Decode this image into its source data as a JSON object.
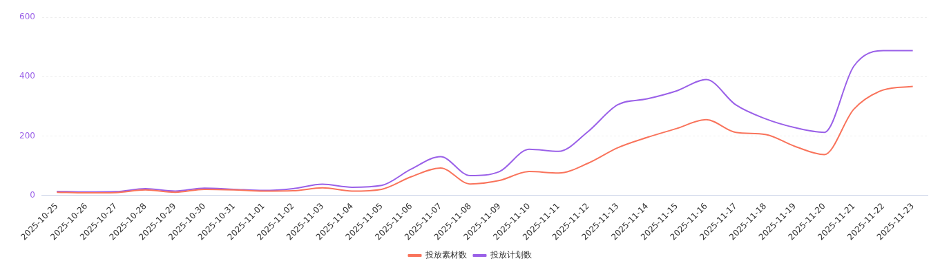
{
  "chart_data": {
    "type": "line",
    "categories": [
      "2025-10-25",
      "2025-10-26",
      "2025-10-27",
      "2025-10-28",
      "2025-10-29",
      "2025-10-30",
      "2025-10-31",
      "2025-11-01",
      "2025-11-02",
      "2025-11-03",
      "2025-11-04",
      "2025-11-05",
      "2025-11-06",
      "2025-11-07",
      "2025-11-08",
      "2025-11-09",
      "2025-11-10",
      "2025-11-11",
      "2025-11-12",
      "2025-11-13",
      "2025-11-14",
      "2025-11-15",
      "2025-11-16",
      "2025-11-17",
      "2025-11-18",
      "2025-11-19",
      "2025-11-20",
      "2025-11-21",
      "2025-11-22",
      "2025-11-23"
    ],
    "series": [
      {
        "name": "投放素材数",
        "color": "#f9735b",
        "values": [
          10,
          8,
          9,
          18,
          10,
          20,
          18,
          14,
          15,
          25,
          14,
          20,
          62,
          92,
          38,
          50,
          80,
          75,
          108,
          160,
          195,
          225,
          255,
          212,
          205,
          165,
          137,
          290,
          355,
          367
        ]
      },
      {
        "name": "投放计划数",
        "color": "#9a60e8",
        "values": [
          13,
          11,
          12,
          22,
          14,
          24,
          20,
          16,
          22,
          37,
          27,
          33,
          88,
          130,
          66,
          80,
          155,
          148,
          215,
          305,
          325,
          352,
          390,
          305,
          258,
          228,
          212,
          435,
          488,
          488
        ]
      }
    ],
    "ylim": [
      0,
      600
    ],
    "yticks": [
      0,
      200,
      400,
      600
    ],
    "grid": "y",
    "legend": "bottom"
  }
}
